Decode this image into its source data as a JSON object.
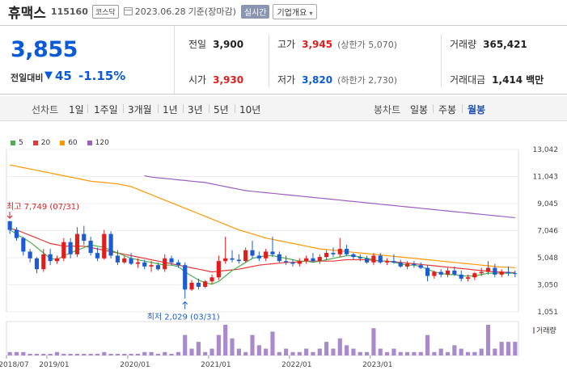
{
  "header": {
    "name": "휴맥스",
    "code": "115160",
    "market": "코스닥",
    "date": "2023.06.28",
    "date_suffix": "기준(장마감)",
    "realtime_label": "실시간",
    "company_label": "기업개요"
  },
  "quote": {
    "price": "3,855",
    "change_label": "전일대비",
    "change_arrow": "▼",
    "change_value": "45",
    "change_pct": "-1.15%",
    "prev_label": "전일",
    "prev_value": "3,900",
    "high_label": "고가",
    "high_value": "3,945",
    "upper_limit": "(상한가 5,070)",
    "volume_label": "거래량",
    "volume_value": "365,421",
    "open_label": "시가",
    "open_value": "3,930",
    "low_label": "저가",
    "low_value": "3,820",
    "lower_limit": "(하한가 2,730)",
    "amount_label": "거래대금",
    "amount_value": "1,414",
    "amount_unit": "백만"
  },
  "toolbar": {
    "line_label": "선차트",
    "periods": [
      "1일",
      "1주일",
      "3개월",
      "1년",
      "3년",
      "5년",
      "10년"
    ],
    "candle_label": "봉차트",
    "candles": [
      "일봉",
      "주봉",
      "월봉"
    ],
    "active_candle": "월봉"
  },
  "legend": [
    {
      "label": "5",
      "color": "#4caf50"
    },
    {
      "label": "20",
      "color": "#e53935"
    },
    {
      "label": "60",
      "color": "#ff9800"
    },
    {
      "label": "120",
      "color": "#9c5fc0"
    }
  ],
  "chart_data": {
    "type": "candlestick",
    "y_ticks": [
      "13,042",
      "11,043",
      "9,045",
      "7,046",
      "5,048",
      "3,050",
      "1,051"
    ],
    "y_tick_values": [
      13042,
      11043,
      9045,
      7046,
      5048,
      3050,
      1051
    ],
    "x_ticks": [
      "2018/07",
      "2019/01",
      "2020/01",
      "2021/01",
      "2022/01",
      "2023/01"
    ],
    "x_tick_months": [
      0,
      6,
      18,
      30,
      42,
      54
    ],
    "max_annotation": "최고 7,749 (07/31)",
    "min_annotation": "최저 2,029 (03/31)",
    "volume_label": "거래량",
    "candles": [
      [
        7749,
        7749,
        6800,
        7100
      ],
      [
        7100,
        7300,
        6300,
        6500
      ],
      [
        6500,
        6600,
        5200,
        5500
      ],
      [
        5500,
        5700,
        4700,
        5000
      ],
      [
        5000,
        5100,
        3900,
        4200
      ],
      [
        4200,
        5700,
        4000,
        5300
      ],
      [
        5300,
        5700,
        4500,
        4800
      ],
      [
        4800,
        5200,
        4600,
        5000
      ],
      [
        5000,
        6500,
        4800,
        6200
      ],
      [
        6200,
        6500,
        5000,
        5300
      ],
      [
        5300,
        7300,
        5100,
        6800
      ],
      [
        6800,
        7400,
        6000,
        6300
      ],
      [
        6300,
        6600,
        5200,
        5400
      ],
      [
        5400,
        5800,
        4800,
        5000
      ],
      [
        5000,
        7100,
        4900,
        6800
      ],
      [
        6800,
        7000,
        5000,
        5200
      ],
      [
        5200,
        5600,
        4500,
        4700
      ],
      [
        4700,
        5200,
        4600,
        5000
      ],
      [
        5000,
        5400,
        4500,
        4600
      ],
      [
        4600,
        5000,
        4300,
        4700
      ],
      [
        4700,
        4900,
        4200,
        4400
      ],
      [
        4400,
        4800,
        4000,
        4500
      ],
      [
        4500,
        4700,
        4100,
        4200
      ],
      [
        4200,
        5300,
        4000,
        5000
      ],
      [
        5000,
        5200,
        4500,
        4700
      ],
      [
        4700,
        4900,
        4300,
        4500
      ],
      [
        4500,
        4700,
        2029,
        2700
      ],
      [
        2700,
        3400,
        2600,
        3200
      ],
      [
        3200,
        3500,
        2700,
        2900
      ],
      [
        2900,
        3400,
        2800,
        3300
      ],
      [
        3300,
        3800,
        3100,
        3600
      ],
      [
        3600,
        5200,
        3400,
        4800
      ],
      [
        4800,
        6600,
        4600,
        5000
      ],
      [
        5000,
        5600,
        4700,
        4900
      ],
      [
        4900,
        5300,
        4600,
        4800
      ],
      [
        4800,
        5800,
        4700,
        5600
      ],
      [
        5600,
        6300,
        5000,
        5200
      ],
      [
        5200,
        5500,
        4800,
        5000
      ],
      [
        5000,
        5700,
        4800,
        5500
      ],
      [
        5500,
        6600,
        5100,
        5300
      ],
      [
        5300,
        5500,
        4700,
        4800
      ],
      [
        4800,
        5200,
        4500,
        4700
      ],
      [
        4700,
        4900,
        4400,
        4600
      ],
      [
        4600,
        5000,
        4400,
        4800
      ],
      [
        4800,
        5200,
        4600,
        5000
      ],
      [
        5000,
        5400,
        4700,
        4800
      ],
      [
        4800,
        5300,
        4600,
        5100
      ],
      [
        5100,
        5600,
        4900,
        5400
      ],
      [
        5400,
        5800,
        5100,
        5300
      ],
      [
        5300,
        6500,
        5100,
        5700
      ],
      [
        5700,
        6000,
        5200,
        5300
      ],
      [
        5300,
        5400,
        4900,
        5100
      ],
      [
        5100,
        5300,
        4800,
        5000
      ],
      [
        5000,
        5200,
        4600,
        4700
      ],
      [
        4700,
        5400,
        4500,
        5200
      ],
      [
        5200,
        5400,
        4600,
        4700
      ],
      [
        4700,
        5000,
        4500,
        4800
      ],
      [
        4800,
        5300,
        4600,
        4700
      ],
      [
        4700,
        4900,
        4300,
        4400
      ],
      [
        4400,
        4800,
        4200,
        4600
      ],
      [
        4600,
        4800,
        4300,
        4500
      ],
      [
        4500,
        4700,
        4200,
        4300
      ],
      [
        4300,
        4500,
        3300,
        3700
      ],
      [
        3700,
        4100,
        3500,
        4000
      ],
      [
        4000,
        4200,
        3600,
        3800
      ],
      [
        3800,
        4300,
        3600,
        4100
      ],
      [
        4100,
        4400,
        3700,
        3800
      ],
      [
        3800,
        4100,
        3300,
        3500
      ],
      [
        3500,
        3800,
        3300,
        3600
      ],
      [
        3600,
        4000,
        3400,
        3900
      ],
      [
        3900,
        4300,
        3700,
        4000
      ],
      [
        4000,
        4800,
        3800,
        4300
      ],
      [
        4300,
        4600,
        3600,
        3800
      ],
      [
        3800,
        4200,
        3600,
        4000
      ],
      [
        4000,
        4400,
        3700,
        3900
      ],
      [
        3900,
        4100,
        3600,
        3855
      ]
    ],
    "volumes": [
      1,
      1,
      1,
      0.5,
      0.5,
      0.5,
      0.5,
      1,
      0.5,
      0.5,
      0.5,
      0.5,
      0.5,
      0.5,
      1,
      0.5,
      0.5,
      0.5,
      0.5,
      0.5,
      1,
      1,
      0.5,
      1,
      0.5,
      1,
      6,
      2,
      4,
      1,
      2,
      6,
      9,
      5,
      2,
      1,
      6,
      3,
      2,
      7,
      1,
      2,
      1,
      1,
      2,
      1,
      2,
      4,
      2,
      5,
      3,
      2,
      1,
      1,
      8,
      2,
      1,
      2,
      1,
      1,
      1,
      1,
      6,
      1,
      2,
      1,
      3,
      2,
      1,
      1,
      2,
      9,
      2,
      4,
      4,
      4
    ],
    "ma5": [
      7100,
      6800,
      6500,
      6200,
      5800,
      5400,
      5000,
      4900,
      5200,
      5400,
      5600,
      5800,
      6000,
      5900,
      5800,
      5600,
      5400,
      5200,
      5000,
      4900,
      4800,
      4700,
      4600,
      4500,
      4500,
      4400,
      4000,
      3700,
      3400,
      3200,
      3100,
      3300,
      3700,
      4100,
      4400,
      4700,
      5000,
      5100,
      5200,
      5200,
      5100,
      5000,
      4900,
      4800,
      4800,
      4700,
      4800,
      4900,
      5000,
      5100,
      5200,
      5200,
      5100,
      5000,
      4900,
      4800,
      4800,
      4700,
      4600,
      4500,
      4500,
      4400,
      4200,
      4000,
      3900,
      3800,
      3800,
      3700,
      3700,
      3700,
      3800,
      3900,
      3900,
      3900,
      3900,
      3900
    ],
    "ma20": [
      7200,
      7100,
      6900,
      6700,
      6500,
      6300,
      6100,
      6000,
      5900,
      5900,
      5900,
      5900,
      5800,
      5700,
      5600,
      5500,
      5400,
      5300,
      5200,
      5100,
      5000,
      4900,
      4800,
      4700,
      4600,
      4500,
      4400,
      4300,
      4200,
      4100,
      4000,
      4050,
      4100,
      4150,
      4200,
      4300,
      4400,
      4500,
      4550,
      4600,
      4650,
      4700,
      4700,
      4750,
      4800,
      4800,
      4800,
      4800,
      4800,
      4850,
      4900,
      4900,
      4900,
      4900,
      4850,
      4800,
      4800,
      4750,
      4700,
      4650,
      4600,
      4550,
      4500,
      4450,
      4400,
      4350,
      4300,
      4250,
      4200,
      4150,
      4100,
      4050,
      4000,
      4000,
      3950,
      3950
    ],
    "ma60": [
      11900,
      11800,
      11700,
      11600,
      11500,
      11400,
      11300,
      11200,
      11100,
      11000,
      10900,
      10800,
      10700,
      10650,
      10600,
      10550,
      10500,
      10400,
      10300,
      10100,
      9900,
      9700,
      9500,
      9300,
      9100,
      8900,
      8700,
      8500,
      8300,
      8100,
      7900,
      7700,
      7500,
      7300,
      7100,
      6950,
      6800,
      6650,
      6500,
      6400,
      6300,
      6200,
      6100,
      6000,
      5900,
      5800,
      5700,
      5650,
      5600,
      5550,
      5500,
      5450,
      5400,
      5350,
      5300,
      5250,
      5200,
      5150,
      5100,
      5050,
      5000,
      4950,
      4900,
      4850,
      4800,
      4750,
      4700,
      4650,
      4600,
      4550,
      4500,
      4450,
      4400,
      4350,
      4350,
      4300
    ],
    "ma120_start": 20,
    "ma120": [
      11100,
      11000,
      10950,
      10900,
      10850,
      10800,
      10750,
      10700,
      10650,
      10600,
      10500,
      10400,
      10300,
      10200,
      10100,
      10000,
      9950,
      9900,
      9850,
      9800,
      9750,
      9700,
      9650,
      9600,
      9550,
      9500,
      9450,
      9400,
      9350,
      9300,
      9250,
      9200,
      9150,
      9100,
      9050,
      9000,
      8950,
      8900,
      8850,
      8800,
      8750,
      8700,
      8650,
      8600,
      8550,
      8500,
      8450,
      8400,
      8350,
      8300,
      8250,
      8200,
      8150,
      8100,
      8050,
      8000
    ]
  }
}
